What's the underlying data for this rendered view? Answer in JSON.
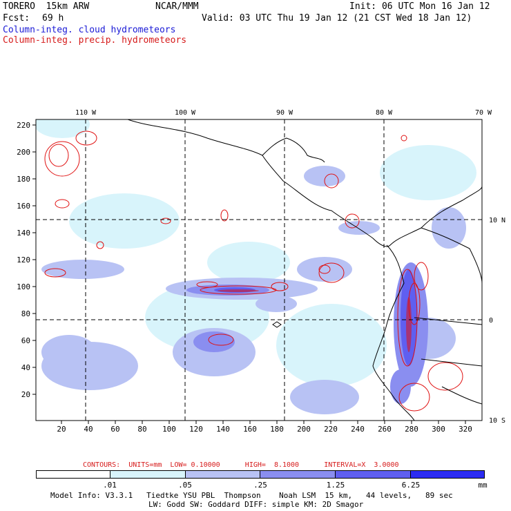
{
  "header": {
    "model": "TORERO  15km ARW",
    "org": "NCAR/MMM",
    "init": "Init: 06 UTC Mon 16 Jan 12",
    "fcst_label": "Fcst:",
    "fcst_value": "69 h",
    "valid": "Valid: 03 UTC Thu 19 Jan 12 (21 CST Wed 18 Jan 12)",
    "field_cloud": "Column-integ. cloud hydrometeors",
    "field_precip": "Column-integ. precip. hydrometeors"
  },
  "map": {
    "top_lon_labels": [
      "110 W",
      "100 W",
      "90 W",
      "80 W",
      "70 W"
    ],
    "right_lat_labels": [
      "10 N",
      "0",
      "10 S"
    ],
    "y_ticks": [
      "220",
      "200",
      "180",
      "160",
      "140",
      "120",
      "100",
      "80",
      "60",
      "40",
      "20"
    ],
    "x_ticks": [
      "20",
      "40",
      "60",
      "80",
      "100",
      "120",
      "140",
      "160",
      "180",
      "200",
      "220",
      "240",
      "260",
      "280",
      "300",
      "320"
    ]
  },
  "contours_note": "CONTOURS:  UNITS=mm  LOW= 0.10000      HIGH=  8.1000      INTERVAL=X  3.0000",
  "colorbar": {
    "labels": [
      ".01",
      ".05",
      ".25",
      "1.25",
      "6.25"
    ],
    "unit": "mm",
    "colors": [
      "#ffffff",
      "#d8f4fb",
      "#b8c2f4",
      "#8a8ef0",
      "#5f5ff0",
      "#2c2cf2"
    ]
  },
  "footer": {
    "line1": "Model Info: V3.3.1   Tiedtke YSU PBL  Thompson    Noah LSM  15 km,   44 levels,   89 sec",
    "line2": "LW: Godd SW: Goddard DIFF: simple KM: 2D Smagor"
  }
}
